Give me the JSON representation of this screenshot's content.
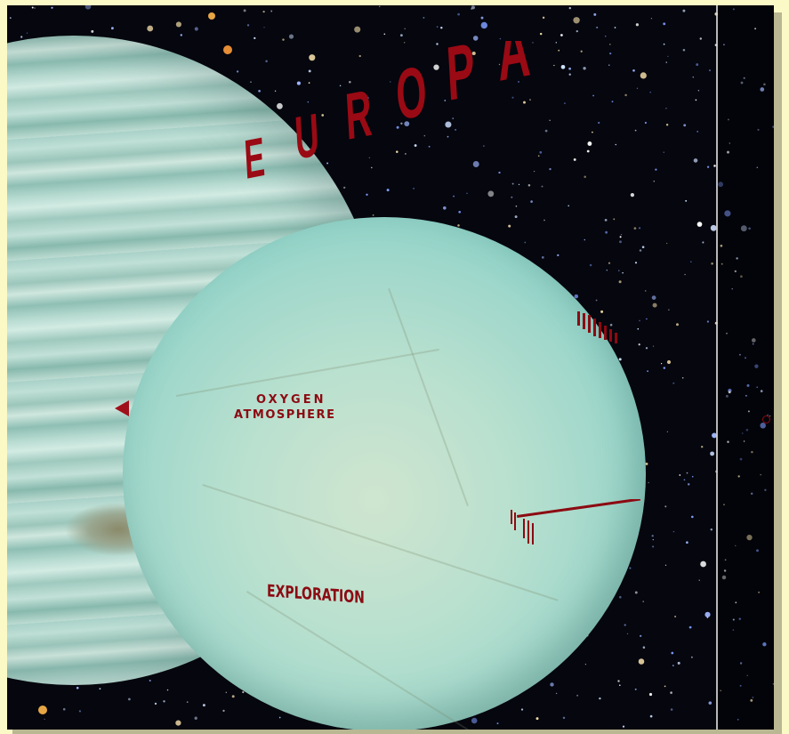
{
  "scene": {
    "title": "EUROPA",
    "labels": {
      "oxygen": "OXYGEN",
      "atmosphere": "ATMOSPHERE",
      "exploration": "EXPLORATION"
    },
    "colors": {
      "label_red": "#8c0a12",
      "space": "#05060e",
      "europa_surface": "#9fd7cb",
      "jupiter_bands": "#a9d1c8",
      "frame": "#fbf9c6"
    },
    "icons": {
      "left_marker": "arrow-marker-icon",
      "right_marker": "ring-marker-icon"
    }
  }
}
